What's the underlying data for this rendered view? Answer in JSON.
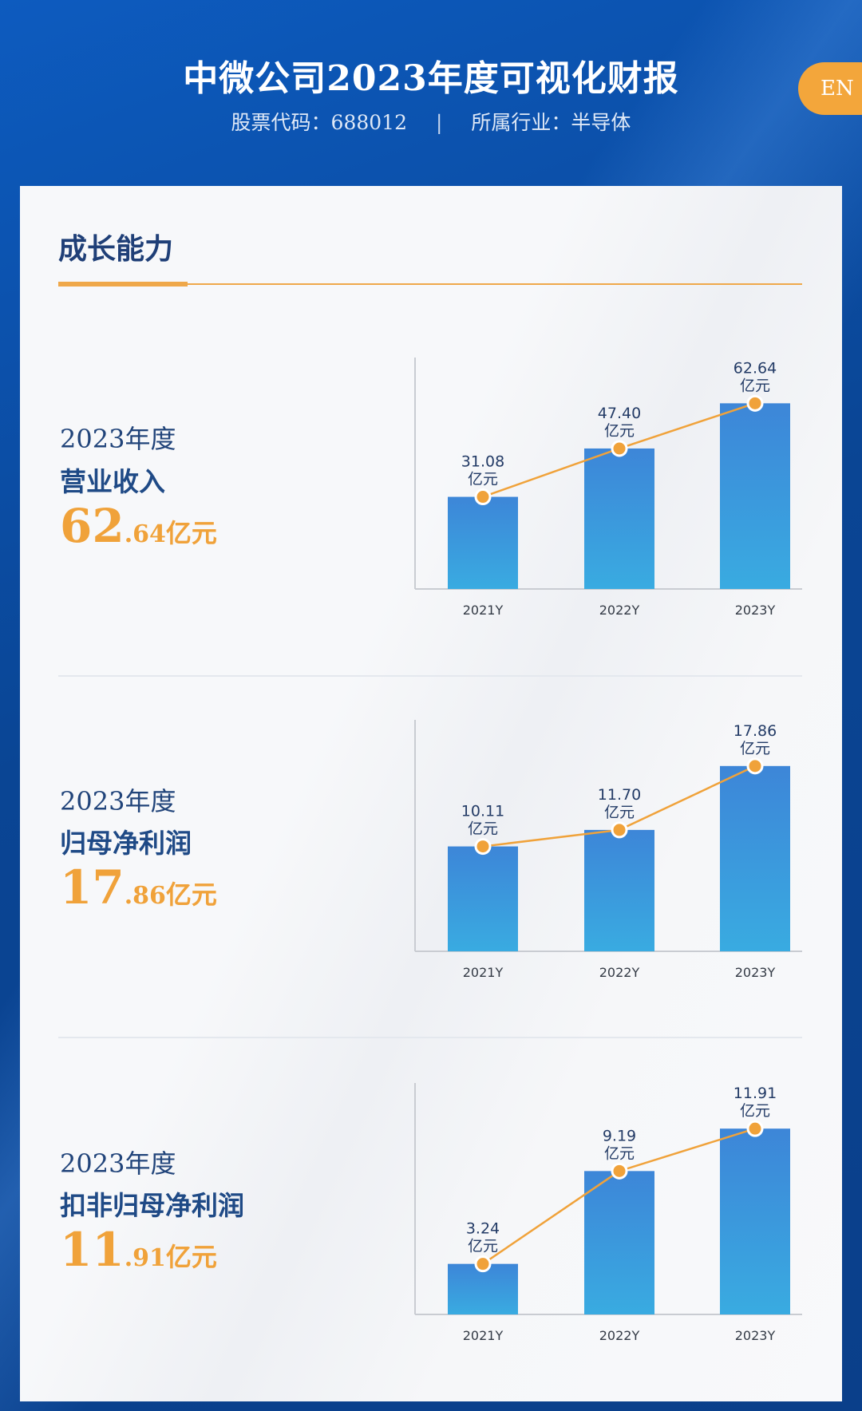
{
  "header": {
    "title": "中微公司2023年度可视化财报",
    "stock_label": "股票代码：688012",
    "separator": "|",
    "industry_label": "所属行业：半导体",
    "lang_button": "EN"
  },
  "section": {
    "title": "成长能力"
  },
  "colors": {
    "accent_orange": "#f0a23a",
    "bar_top": "#3d86d8",
    "bar_bottom": "#39abe1",
    "title_blue": "#1f3f77",
    "header_blue": "#0b4aa0"
  },
  "metrics": [
    {
      "year": "2023年度",
      "label": "营业收入",
      "value_int": "62",
      "value_dec": ".64",
      "unit": "亿元"
    },
    {
      "year": "2023年度",
      "label": "归母净利润",
      "value_int": "17",
      "value_dec": ".86",
      "unit": "亿元"
    },
    {
      "year": "2023年度",
      "label": "扣非归母净利润",
      "value_int": "11",
      "value_dec": ".91",
      "unit": "亿元"
    }
  ],
  "chart_data": [
    {
      "type": "bar",
      "categories": [
        "2021Y",
        "2022Y",
        "2023Y"
      ],
      "values": [
        31.08,
        47.4,
        62.64
      ],
      "value_labels": [
        "31.08",
        "47.40",
        "62.64"
      ],
      "unit": "亿元",
      "ylim": [
        0,
        70
      ],
      "line_overlay": true,
      "grid": false
    },
    {
      "type": "bar",
      "categories": [
        "2021Y",
        "2022Y",
        "2023Y"
      ],
      "values": [
        10.11,
        11.7,
        17.86
      ],
      "value_labels": [
        "10.11",
        "11.70",
        "17.86"
      ],
      "unit": "亿元",
      "ylim": [
        0,
        20
      ],
      "line_overlay": true,
      "grid": false
    },
    {
      "type": "bar",
      "categories": [
        "2021Y",
        "2022Y",
        "2023Y"
      ],
      "values": [
        3.24,
        9.19,
        11.91
      ],
      "value_labels": [
        "3.24",
        "9.19",
        "11.91"
      ],
      "unit": "亿元",
      "ylim": [
        0,
        13.3
      ],
      "line_overlay": true,
      "grid": false
    }
  ]
}
